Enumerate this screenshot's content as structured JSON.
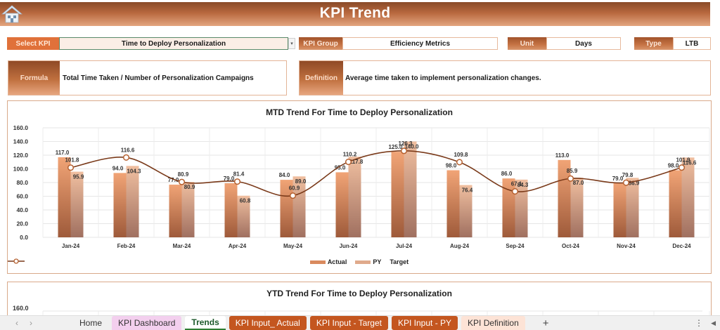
{
  "header": {
    "title": "KPI Trend",
    "home_icon": "home-icon"
  },
  "selectors": {
    "select_kpi_label": "Select KPI",
    "select_kpi_value": "Time to Deploy Personalization",
    "kpi_group_label": "KPI Group",
    "kpi_group_value": "Efficiency Metrics",
    "unit_label": "Unit",
    "unit_value": "Days",
    "type_label": "Type",
    "type_value": "LTB",
    "dropdown_icon": "▾"
  },
  "info": {
    "formula_label": "Formula",
    "formula_value": "Total Time Taken / Number of Personalization Campaigns",
    "definition_label": "Definition",
    "definition_value": "Average time taken to implement personalization changes."
  },
  "colors": {
    "header_dark": "#8a4a28",
    "header_light": "#e3a57f",
    "actual_bar_top": "#f1a476",
    "actual_bar_bottom": "#9e5a3a",
    "py_bar_top": "#f0bfa0",
    "py_bar_bottom": "#a07060",
    "target_line": "#7a3a1a",
    "tab_dark": "#c4561f",
    "tab_pink": "#f3cfee",
    "tab_peach": "#fde3d6"
  },
  "chart_data": [
    {
      "type": "bar",
      "title": "MTD Trend For Time to Deploy Personalization",
      "categories": [
        "Jan-24",
        "Feb-24",
        "Mar-24",
        "Apr-24",
        "May-24",
        "Jun-24",
        "Jul-24",
        "Aug-24",
        "Sep-24",
        "Oct-24",
        "Nov-24",
        "Dec-24"
      ],
      "series": [
        {
          "name": "Actual",
          "type": "bar",
          "values": [
            117.0,
            94.0,
            77.0,
            79.0,
            84.0,
            95.0,
            125.0,
            98.0,
            86.0,
            113.0,
            79.0,
            98.0
          ]
        },
        {
          "name": "PY",
          "type": "bar",
          "values": [
            95.9,
            104.3,
            80.9,
            60.8,
            89.0,
            117.8,
            140.0,
            76.4,
            84.3,
            87.0,
            86.9,
            116.6
          ]
        },
        {
          "name": "Target",
          "type": "line",
          "values": [
            101.8,
            116.6,
            80.9,
            81.4,
            60.9,
            110.2,
            126.3,
            109.8,
            67.1,
            85.9,
            79.8,
            101.9
          ]
        }
      ],
      "xlabel": "",
      "ylabel": "",
      "ylim": [
        0,
        160
      ],
      "yticks": [
        "0.0",
        "20.0",
        "40.0",
        "60.0",
        "80.0",
        "100.0",
        "120.0",
        "140.0",
        "160.0"
      ],
      "grid": true,
      "legend_position": "bottom",
      "legend": [
        "Actual",
        "PY",
        "Target"
      ]
    },
    {
      "type": "bar",
      "title": "YTD Trend For Time to Deploy Personalization",
      "ylim": [
        0,
        160
      ],
      "yticks_visible": [
        "160.0"
      ]
    }
  ],
  "ytd": {
    "title": "YTD Trend For Time to Deploy Personalization",
    "y_top": "160.0"
  },
  "tabs": {
    "prev": "‹",
    "next": "›",
    "items": [
      {
        "label": "Home"
      },
      {
        "label": "KPI Dashboard"
      },
      {
        "label": "Trends"
      },
      {
        "label": "KPI Input_ Actual"
      },
      {
        "label": "KPI Input - Target"
      },
      {
        "label": "KPI Input - PY"
      },
      {
        "label": "KPI Definition"
      }
    ],
    "add": "+",
    "menu": "⋮",
    "scroll": "◀"
  }
}
